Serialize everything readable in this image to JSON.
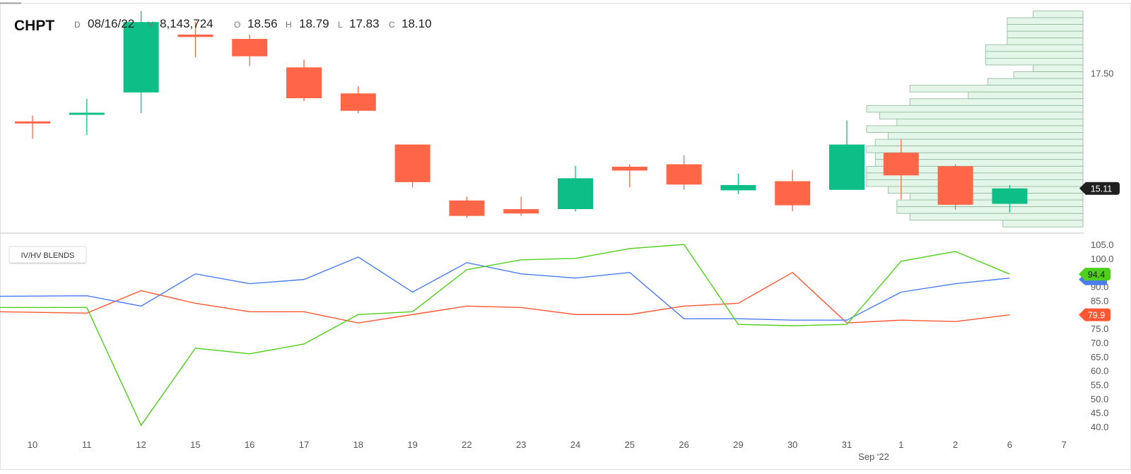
{
  "header": {
    "symbol": "CHPT",
    "date_label": "D",
    "date_value": "08/16/22",
    "volume_label": "V",
    "volume_value": "8,143,724",
    "open_label": "O",
    "open_value": "18.56",
    "high_label": "H",
    "high_value": "18.79",
    "low_label": "L",
    "low_value": "17.83",
    "close_label": "C",
    "close_value": "18.10"
  },
  "lower_panel": {
    "button_label": "IV/HV BLENDS"
  },
  "colors": {
    "up": "#0dbf86",
    "down": "#ff6647",
    "iv_line": "#ff5733",
    "hv_line": "#4a7cf0",
    "blend_line": "#4fcf1c",
    "volume_profile_fill": "#e4f6e9",
    "volume_profile_stroke": "#8fb79a",
    "last_price_badge": "#1f1f1f"
  },
  "chart_data": [
    {
      "type": "candlestick",
      "x": [
        "10",
        "11",
        "12",
        "15",
        "16",
        "17",
        "18",
        "19",
        "22",
        "23",
        "24",
        "25",
        "26",
        "29",
        "30",
        "31",
        "1",
        "2",
        "6",
        "7"
      ],
      "x_group_label": "Sep '22",
      "ohlc": [
        {
          "x": "10",
          "open": 16.5,
          "high": 16.62,
          "low": 16.14,
          "close": 16.46
        },
        {
          "x": "11",
          "open": 16.64,
          "high": 16.97,
          "low": 16.22,
          "close": 16.68
        },
        {
          "x": "12",
          "open": 17.1,
          "high": 18.79,
          "low": 16.67,
          "close": 18.56
        },
        {
          "x": "15",
          "open": 18.3,
          "high": 18.56,
          "low": 17.83,
          "close": 18.25
        },
        {
          "x": "16",
          "open": 18.21,
          "high": 18.3,
          "low": 17.65,
          "close": 17.85
        },
        {
          "x": "17",
          "open": 17.62,
          "high": 17.78,
          "low": 16.92,
          "close": 16.98
        },
        {
          "x": "18",
          "open": 17.08,
          "high": 17.23,
          "low": 16.67,
          "close": 16.72
        },
        {
          "x": "19",
          "open": 16.02,
          "high": 16.02,
          "low": 15.13,
          "close": 15.24
        },
        {
          "x": "22",
          "open": 14.86,
          "high": 14.94,
          "low": 14.5,
          "close": 14.54
        },
        {
          "x": "23",
          "open": 14.68,
          "high": 14.94,
          "low": 14.54,
          "close": 14.59
        },
        {
          "x": "24",
          "open": 14.68,
          "high": 15.58,
          "low": 14.63,
          "close": 15.32
        },
        {
          "x": "25",
          "open": 15.56,
          "high": 15.61,
          "low": 15.13,
          "close": 15.48
        },
        {
          "x": "26",
          "open": 15.61,
          "high": 15.8,
          "low": 15.08,
          "close": 15.19
        },
        {
          "x": "29",
          "open": 15.07,
          "high": 15.42,
          "low": 14.99,
          "close": 15.18
        },
        {
          "x": "30",
          "open": 15.26,
          "high": 15.49,
          "low": 14.64,
          "close": 14.76
        },
        {
          "x": "31",
          "open": 15.08,
          "high": 16.52,
          "low": 15.08,
          "close": 16.02
        },
        {
          "x": "1",
          "open": 15.85,
          "high": 16.12,
          "low": 14.88,
          "close": 15.38
        },
        {
          "x": "2",
          "open": 15.57,
          "high": 15.61,
          "low": 14.67,
          "close": 14.77
        },
        {
          "x": "6",
          "open": 14.79,
          "high": 15.18,
          "low": 14.61,
          "close": 15.11
        }
      ],
      "y_ticks": [
        17.5
      ],
      "ylim": [
        14.3,
        18.9
      ],
      "last_price": "15.11",
      "volume_profile": [
        {
          "price": 18.72,
          "relative": 0.23
        },
        {
          "price": 18.58,
          "relative": 0.35
        },
        {
          "price": 18.44,
          "relative": 0.35
        },
        {
          "price": 18.3,
          "relative": 0.35
        },
        {
          "price": 18.16,
          "relative": 0.35
        },
        {
          "price": 18.02,
          "relative": 0.45
        },
        {
          "price": 17.88,
          "relative": 0.45
        },
        {
          "price": 17.74,
          "relative": 0.45
        },
        {
          "price": 17.6,
          "relative": 0.23
        },
        {
          "price": 17.46,
          "relative": 0.32
        },
        {
          "price": 17.32,
          "relative": 0.44
        },
        {
          "price": 17.18,
          "relative": 0.8
        },
        {
          "price": 17.04,
          "relative": 0.53
        },
        {
          "price": 16.9,
          "relative": 0.8
        },
        {
          "price": 16.76,
          "relative": 1.0
        },
        {
          "price": 16.62,
          "relative": 0.94
        },
        {
          "price": 16.48,
          "relative": 0.86
        },
        {
          "price": 16.34,
          "relative": 1.0
        },
        {
          "price": 16.2,
          "relative": 0.9
        },
        {
          "price": 16.06,
          "relative": 0.96
        },
        {
          "price": 15.92,
          "relative": 1.0
        },
        {
          "price": 15.78,
          "relative": 0.96
        },
        {
          "price": 15.64,
          "relative": 0.96
        },
        {
          "price": 15.5,
          "relative": 1.0
        },
        {
          "price": 15.36,
          "relative": 1.0
        },
        {
          "price": 15.22,
          "relative": 1.0
        },
        {
          "price": 15.08,
          "relative": 0.9
        },
        {
          "price": 14.94,
          "relative": 0.8
        },
        {
          "price": 14.8,
          "relative": 0.86
        },
        {
          "price": 14.66,
          "relative": 0.86
        },
        {
          "price": 14.52,
          "relative": 0.8
        },
        {
          "price": 14.38,
          "relative": 0.37
        }
      ]
    },
    {
      "type": "line",
      "x": [
        "10",
        "11",
        "12",
        "15",
        "16",
        "17",
        "18",
        "19",
        "22",
        "23",
        "24",
        "25",
        "26",
        "29",
        "30",
        "31",
        "1",
        "2",
        "6"
      ],
      "y_ticks": [
        "40.0",
        "45.0",
        "50.0",
        "55.0",
        "60.0",
        "65.0",
        "70.0",
        "75.0",
        "85.0",
        "90.0",
        "100.0",
        "105.0"
      ],
      "ylim": [
        38.0,
        106.5
      ],
      "series": [
        {
          "color_key": "iv_line",
          "values": [
            81.0,
            80.5,
            88.5,
            84.0,
            81.0,
            81.0,
            77.0,
            80.0,
            83.0,
            82.5,
            80.0,
            80.0,
            83.0,
            84.0,
            95.0,
            77.0,
            78.0,
            77.5,
            79.9
          ]
        },
        {
          "color_key": "hv_line",
          "values": [
            86.5,
            86.7,
            83.0,
            94.5,
            91.0,
            92.5,
            100.5,
            88.0,
            98.5,
            94.5,
            93.0,
            95.0,
            78.5,
            78.5,
            78.0,
            78.0,
            88.0,
            91.0,
            93.0
          ]
        },
        {
          "color_key": "blend_line",
          "values": [
            82.5,
            82.5,
            40.5,
            68.0,
            66.0,
            69.5,
            80.0,
            81.0,
            96.0,
            99.5,
            100.0,
            103.5,
            105.0,
            76.5,
            76.0,
            76.5,
            99.0,
            102.5,
            94.4
          ]
        }
      ],
      "end_labels": [
        {
          "color_key": "blend_line",
          "text": "94.4"
        },
        {
          "color_key": "iv_line",
          "text": "79.9"
        }
      ]
    }
  ]
}
